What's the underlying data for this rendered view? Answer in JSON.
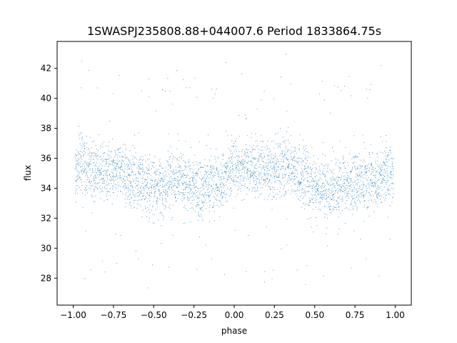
{
  "chart_data": {
    "type": "scatter",
    "title": "1SWASPJ235808.88+044007.6 Period 1833864.75s",
    "xlabel": "phase",
    "ylabel": "flux",
    "xlim": [
      -1.1,
      1.1
    ],
    "ylim": [
      26.2,
      43.8
    ],
    "x_ticks": [
      -1.0,
      -0.75,
      -0.5,
      -0.25,
      0.0,
      0.25,
      0.5,
      0.75,
      1.0
    ],
    "x_tick_labels": [
      "−1.00",
      "−0.75",
      "−0.50",
      "−0.25",
      "0.00",
      "0.25",
      "0.50",
      "0.75",
      "1.00"
    ],
    "y_ticks": [
      28,
      30,
      32,
      34,
      36,
      38,
      40,
      42
    ],
    "y_tick_labels": [
      "28",
      "30",
      "32",
      "34",
      "36",
      "38",
      "40",
      "42"
    ],
    "grid": false,
    "legend": "none",
    "marker_color": "#1f77b4",
    "series": [
      {
        "x": [
          -0.98,
          -0.96,
          -0.94,
          -0.92,
          -0.9,
          -0.88,
          -0.86,
          -0.84,
          -0.82,
          -0.8,
          -0.78,
          -0.76,
          -0.74,
          -0.72,
          -0.7,
          -0.68,
          -0.66,
          -0.64,
          -0.62,
          -0.6,
          -0.58,
          -0.56,
          -0.54,
          -0.52,
          -0.5,
          -0.48,
          -0.46,
          -0.44,
          -0.42,
          -0.4,
          -0.38,
          -0.36,
          -0.34,
          -0.32,
          -0.3,
          -0.28,
          -0.26,
          -0.24,
          -0.22,
          -0.2,
          -0.18,
          -0.16,
          -0.14,
          -0.12,
          -0.1,
          -0.08,
          -0.06,
          -0.04,
          -0.02,
          0.0,
          0.02,
          0.04,
          0.06,
          0.08,
          0.1,
          0.12,
          0.14,
          0.16,
          0.18,
          0.2,
          0.22,
          0.24,
          0.26,
          0.28,
          0.3,
          0.32,
          0.34,
          0.36,
          0.38,
          0.4,
          0.42,
          0.44,
          0.46,
          0.48,
          0.5,
          0.52,
          0.54,
          0.56,
          0.58,
          0.6,
          0.62,
          0.64,
          0.66,
          0.68,
          0.7,
          0.72,
          0.74,
          0.76,
          0.78,
          0.8,
          0.82,
          0.84,
          0.86,
          0.88,
          0.9,
          0.92,
          0.94,
          0.96,
          0.98
        ],
        "y_center": [
          35.0,
          35.8,
          35.6,
          35.3,
          35.4,
          35.2,
          35.0,
          35.1,
          35.3,
          35.2,
          35.0,
          34.9,
          35.0,
          35.3,
          35.2,
          35.0,
          34.8,
          34.6,
          34.7,
          34.5,
          34.4,
          34.3,
          34.2,
          34.1,
          34.3,
          34.2,
          34.0,
          34.1,
          34.3,
          34.6,
          34.8,
          35.0,
          34.9,
          34.4,
          34.2,
          34.0,
          34.3,
          34.1,
          34.0,
          33.9,
          34.1,
          34.3,
          34.5,
          34.4,
          34.3,
          34.4,
          34.7,
          35.0,
          35.2,
          35.5,
          35.3,
          35.4,
          35.6,
          35.5,
          35.4,
          35.3,
          35.2,
          35.3,
          35.2,
          35.1,
          35.2,
          35.0,
          35.2,
          35.4,
          35.6,
          35.7,
          35.5,
          35.3,
          35.1,
          34.9,
          34.8,
          34.7,
          34.6,
          34.5,
          34.3,
          34.2,
          34.1,
          34.0,
          34.1,
          34.2,
          34.0,
          33.9,
          34.0,
          34.1,
          34.3,
          34.2,
          34.4,
          34.6,
          34.5,
          34.3,
          34.5,
          34.7,
          34.6,
          34.5,
          34.6,
          34.8,
          35.0,
          34.9,
          35.0
        ],
        "y_spread": [
          1.6,
          1.4,
          1.4,
          1.4,
          1.3,
          1.3,
          1.3,
          1.3,
          1.3,
          1.2,
          1.3,
          1.3,
          1.3,
          1.3,
          1.3,
          1.3,
          1.3,
          1.3,
          1.3,
          1.3,
          1.4,
          1.4,
          1.5,
          1.5,
          1.4,
          1.4,
          1.4,
          1.4,
          1.4,
          1.4,
          1.3,
          1.4,
          1.3,
          1.3,
          1.3,
          1.3,
          1.3,
          1.3,
          1.3,
          1.3,
          1.3,
          1.3,
          1.3,
          1.3,
          1.3,
          1.3,
          1.3,
          1.4,
          1.3,
          1.4,
          1.3,
          1.3,
          1.3,
          1.3,
          1.3,
          1.2,
          1.2,
          1.2,
          1.2,
          1.2,
          1.2,
          1.3,
          1.3,
          1.3,
          1.3,
          1.3,
          1.3,
          1.3,
          1.3,
          1.3,
          1.3,
          1.4,
          1.4,
          1.4,
          1.4,
          1.4,
          1.4,
          1.4,
          1.4,
          1.4,
          1.4,
          1.4,
          1.4,
          1.4,
          1.3,
          1.3,
          1.3,
          1.3,
          1.3,
          1.3,
          1.3,
          1.3,
          1.3,
          1.3,
          1.3,
          1.3,
          1.4,
          1.4,
          1.5
        ]
      }
    ]
  }
}
